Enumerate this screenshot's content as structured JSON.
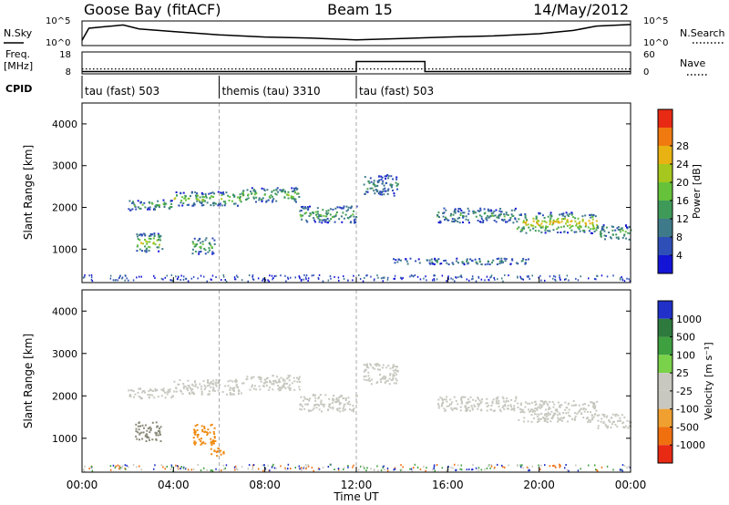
{
  "chart_data": {
    "type": "heatmap",
    "title_left": "Goose Bay (fitACF)",
    "title_center": "Beam 15",
    "title_right": "14/May/2012",
    "xlabel": "Time UT",
    "x_ticks": [
      "00:00",
      "04:00",
      "08:00",
      "12:00",
      "16:00",
      "20:00",
      "00:00"
    ],
    "xlim_hours": [
      0,
      24
    ],
    "top_panels": {
      "nsky_label": "N.Sky",
      "nsearch_label": "N.Search",
      "noise_ticks": [
        "10^5",
        "10^0"
      ],
      "freq_label": "Freq.",
      "freq_unit": "[MHz]",
      "freq_ticks": [
        18,
        8
      ],
      "nave_label": "Nave",
      "nave_ticks": [
        60,
        0
      ],
      "cpid_label": "CPID",
      "nsky_trace": [
        {
          "t": 0.0,
          "v": 0.2
        },
        {
          "t": 0.3,
          "v": 0.75
        },
        {
          "t": 1.0,
          "v": 0.82
        },
        {
          "t": 1.8,
          "v": 0.9
        },
        {
          "t": 2.5,
          "v": 0.72
        },
        {
          "t": 4.0,
          "v": 0.6
        },
        {
          "t": 6.0,
          "v": 0.45
        },
        {
          "t": 8.0,
          "v": 0.35
        },
        {
          "t": 10.0,
          "v": 0.3
        },
        {
          "t": 12.0,
          "v": 0.22
        },
        {
          "t": 14.0,
          "v": 0.28
        },
        {
          "t": 16.0,
          "v": 0.35
        },
        {
          "t": 18.0,
          "v": 0.4
        },
        {
          "t": 20.0,
          "v": 0.5
        },
        {
          "t": 21.5,
          "v": 0.65
        },
        {
          "t": 22.5,
          "v": 0.85
        },
        {
          "t": 24.0,
          "v": 0.92
        }
      ],
      "freq_trace": [
        {
          "t": 0,
          "v": 10
        },
        {
          "t": 24,
          "v": 10
        }
      ],
      "nave_trace": [
        {
          "t": 0,
          "v": 4
        },
        {
          "t": 12,
          "v": 4
        },
        {
          "t": 12,
          "v": 34
        },
        {
          "t": 15,
          "v": 34
        },
        {
          "t": 15,
          "v": 4
        },
        {
          "t": 24,
          "v": 4
        }
      ],
      "cpid_segments": [
        {
          "start": 0,
          "end": 6,
          "label": "tau (fast) 503"
        },
        {
          "start": 6,
          "end": 12,
          "label": "themis (tau) 3310"
        },
        {
          "start": 12,
          "end": 24,
          "label": "tau (fast) 503"
        }
      ]
    },
    "range_plots": {
      "ylabel": "Slant Range [km]",
      "ylim_km": [
        200,
        4500
      ],
      "y_ticks": [
        1000,
        2000,
        3000,
        4000
      ],
      "power": {
        "colorbar_label": "Power [dB]",
        "ticks": [
          4,
          8,
          12,
          16,
          20,
          24,
          28
        ],
        "colors": [
          "#1414d6",
          "#2f4fb8",
          "#3f7a8a",
          "#3f9a5a",
          "#66c23a",
          "#a6c81e",
          "#e8b312",
          "#f07a10",
          "#e82a14"
        ],
        "regions": [
          {
            "t0": 2.0,
            "t1": 4.0,
            "r0": 1950,
            "r1": 2200,
            "level": 0.3
          },
          {
            "t0": 4.0,
            "t1": 7.0,
            "r0": 2050,
            "r1": 2400,
            "level": 0.45
          },
          {
            "t0": 7.0,
            "t1": 9.5,
            "r0": 2150,
            "r1": 2500,
            "level": 0.4
          },
          {
            "t0": 9.5,
            "t1": 12.0,
            "r0": 1650,
            "r1": 2050,
            "level": 0.3
          },
          {
            "t0": 2.3,
            "t1": 3.5,
            "r0": 950,
            "r1": 1400,
            "level": 0.55
          },
          {
            "t0": 4.8,
            "t1": 5.8,
            "r0": 900,
            "r1": 1300,
            "level": 0.35
          },
          {
            "t0": 12.3,
            "t1": 13.8,
            "r0": 2300,
            "r1": 2800,
            "level": 0.2
          },
          {
            "t0": 15.5,
            "t1": 19.0,
            "r0": 1650,
            "r1": 2000,
            "level": 0.25
          },
          {
            "t0": 19.0,
            "t1": 22.5,
            "r0": 1400,
            "r1": 1900,
            "level": 0.6
          },
          {
            "t0": 22.5,
            "t1": 24.0,
            "r0": 1250,
            "r1": 1600,
            "level": 0.3
          },
          {
            "t0": 13.5,
            "t1": 19.5,
            "r0": 650,
            "r1": 800,
            "level": 0.2
          }
        ]
      },
      "velocity": {
        "colorbar_label": "Velocity [m s⁻¹]",
        "ticks": [
          1000,
          500,
          100,
          25,
          -25,
          -100,
          -500,
          -1000
        ],
        "colors": [
          "#2030c8",
          "#2e7a3e",
          "#3fa040",
          "#7ad24a",
          "#c8c8c0",
          "#c8c8c0",
          "#f0a030",
          "#f07010",
          "#e82a14"
        ],
        "regions": [
          {
            "t0": 2.0,
            "t1": 4.0,
            "r0": 1950,
            "r1": 2200,
            "color": "#c8c8c0"
          },
          {
            "t0": 4.0,
            "t1": 7.0,
            "r0": 2050,
            "r1": 2400,
            "color": "#c8c8c0"
          },
          {
            "t0": 7.0,
            "t1": 9.5,
            "r0": 2150,
            "r1": 2500,
            "color": "#c8c8c0"
          },
          {
            "t0": 9.5,
            "t1": 12.0,
            "r0": 1650,
            "r1": 2050,
            "color": "#c8c8c0"
          },
          {
            "t0": 2.3,
            "t1": 3.5,
            "r0": 950,
            "r1": 1400,
            "color": "#8a8a7a"
          },
          {
            "t0": 4.8,
            "t1": 5.8,
            "r0": 850,
            "r1": 1350,
            "color": "#f08a10"
          },
          {
            "t0": 5.6,
            "t1": 6.3,
            "r0": 600,
            "r1": 800,
            "color": "#f08a10"
          },
          {
            "t0": 12.3,
            "t1": 13.8,
            "r0": 2300,
            "r1": 2800,
            "color": "#c8c8c0"
          },
          {
            "t0": 15.5,
            "t1": 19.0,
            "r0": 1650,
            "r1": 2000,
            "color": "#c8c8c0"
          },
          {
            "t0": 19.0,
            "t1": 22.5,
            "r0": 1400,
            "r1": 1900,
            "color": "#c8c8c0"
          },
          {
            "t0": 22.5,
            "t1": 24.0,
            "r0": 1250,
            "r1": 1600,
            "color": "#c8c8c0"
          }
        ]
      }
    }
  }
}
